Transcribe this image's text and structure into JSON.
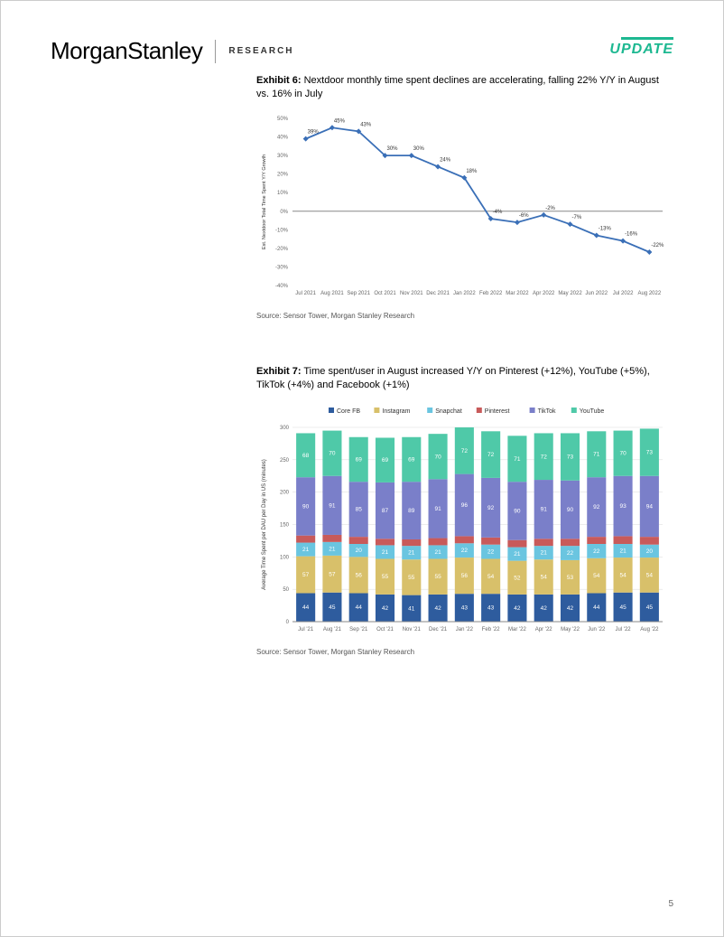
{
  "header": {
    "logo_part1": "Morgan",
    "logo_part2": "Stanley",
    "research_label": "RESEARCH",
    "update_label": "UPDATE",
    "update_color": "#1db891"
  },
  "exhibit6": {
    "number": "Exhibit 6:",
    "title": "Nextdoor monthly time spent declines are accelerating, falling 22% Y/Y in August vs. 16% in July",
    "source": "Source: Sensor Tower, Morgan Stanley Research",
    "type": "line",
    "ylabel": "Est. Nextdoor Total Time Spent Y/Y Growth",
    "categories": [
      "Jul 2021",
      "Aug 2021",
      "Sep 2021",
      "Oct 2021",
      "Nov 2021",
      "Dec 2021",
      "Jan 2022",
      "Feb 2022",
      "Mar 2022",
      "Apr 2022",
      "May 2022",
      "Jun 2022",
      "Jul 2022",
      "Aug 2022"
    ],
    "values": [
      39,
      45,
      43,
      30,
      30,
      24,
      18,
      -4,
      -6,
      -2,
      -7,
      -13,
      -16,
      -22
    ],
    "value_labels": [
      "39%",
      "45%",
      "43%",
      "30%",
      "30%",
      "24%",
      "18%",
      "-4%",
      "-6%",
      "-2%",
      "-7%",
      "-13%",
      "-16%",
      "-22%"
    ],
    "ymin": -40,
    "ymax": 50,
    "ytick_step": 10,
    "yticks": [
      "50%",
      "40%",
      "30%",
      "20%",
      "10%",
      "0%",
      "-10%",
      "-20%",
      "-30%",
      "-40%"
    ],
    "line_color": "#3a6fb7",
    "marker_color": "#3a6fb7",
    "grid_color": "#d9d9d9",
    "axis_color": "#888888",
    "label_fontsize": 6,
    "tick_fontsize": 6
  },
  "exhibit7": {
    "number": "Exhibit 7:",
    "title": "Time spent/user in August increased Y/Y on Pinterest (+12%), YouTube (+5%), TikTok (+4%) and Facebook (+1%)",
    "source": "Source: Sensor Tower, Morgan Stanley Research",
    "type": "stacked-bar",
    "ylabel": "Average Time Spent per DAU per Day in US (minutes)",
    "legend": [
      {
        "label": "Core FB",
        "color": "#2e5c9e"
      },
      {
        "label": "Instagram",
        "color": "#d8c06a"
      },
      {
        "label": "Snapchat",
        "color": "#6ac5e0"
      },
      {
        "label": "Pinterest",
        "color": "#c85a5a"
      },
      {
        "label": "TikTok",
        "color": "#7a7fc9"
      },
      {
        "label": "YouTube",
        "color": "#4fc9a8"
      }
    ],
    "categories": [
      "Jul '21",
      "Aug '21",
      "Sep '21",
      "Oct '21",
      "Nov '21",
      "Dec '21",
      "Jan '22",
      "Feb '22",
      "Mar '22",
      "Apr '22",
      "May '22",
      "Jun '22",
      "Jul '22",
      "Aug '22"
    ],
    "series": {
      "Core FB": [
        44,
        45,
        44,
        42,
        41,
        42,
        43,
        43,
        42,
        42,
        42,
        44,
        45,
        45
      ],
      "Instagram": [
        57,
        57,
        56,
        55,
        55,
        55,
        56,
        54,
        52,
        54,
        53,
        54,
        54,
        54
      ],
      "Snapchat": [
        21,
        21,
        20,
        21,
        21,
        21,
        22,
        22,
        21,
        21,
        22,
        22,
        21,
        20
      ],
      "Pinterest": [
        11,
        11,
        11,
        10,
        10,
        11,
        11,
        11,
        11,
        11,
        11,
        11,
        12,
        12
      ],
      "TikTok": [
        90,
        91,
        85,
        87,
        89,
        91,
        96,
        92,
        90,
        91,
        90,
        92,
        93,
        94
      ],
      "YouTube": [
        68,
        70,
        69,
        69,
        69,
        70,
        72,
        72,
        71,
        72,
        73,
        71,
        70,
        73
      ]
    },
    "ymin": 0,
    "ymax": 300,
    "ytick_step": 50,
    "yticks": [
      "300",
      "250",
      "200",
      "150",
      "100",
      "50",
      "0"
    ],
    "bar_width": 0.72,
    "label_fontsize": 6,
    "tick_fontsize": 6
  },
  "page_number": "5"
}
